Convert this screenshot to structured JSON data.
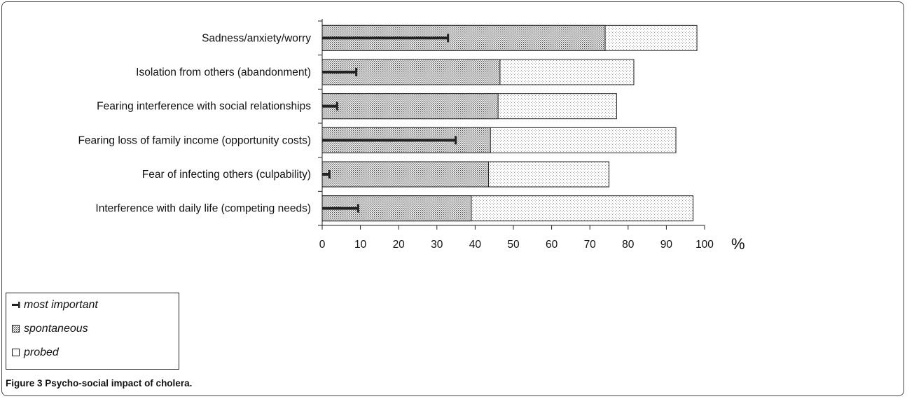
{
  "chart_data": {
    "type": "bar",
    "orientation": "horizontal",
    "title": "",
    "xlabel": "",
    "ylabel": "",
    "x_unit": "%",
    "xlim": [
      0,
      100
    ],
    "x_ticks": [
      0,
      10,
      20,
      30,
      40,
      50,
      60,
      70,
      80,
      90,
      100
    ],
    "grid": false,
    "legend_position": "bottom-left",
    "categories": [
      "Sadness/anxiety/worry",
      "Isolation from others (abandonment)",
      "Fearing interference with social relationships",
      "Fearing loss of family income (opportunity costs)",
      "Fear of infecting others (culpability)",
      "Interference with daily life (competing needs)"
    ],
    "series": [
      {
        "name": "most important",
        "values": [
          33,
          9,
          4,
          35,
          2,
          9.5
        ]
      },
      {
        "name": "spontaneous",
        "values": [
          74,
          46.5,
          46,
          44,
          43.5,
          39
        ]
      },
      {
        "name": "probed",
        "values": [
          98,
          81.5,
          77,
          92.5,
          75,
          97
        ]
      }
    ],
    "colors": {
      "most_important": "#222222",
      "spontaneous_pattern": "#555555",
      "probed_pattern": "#aaaaaa",
      "bar_border": "#222222"
    }
  },
  "caption": "Figure 3 Psycho-social impact of cholera."
}
